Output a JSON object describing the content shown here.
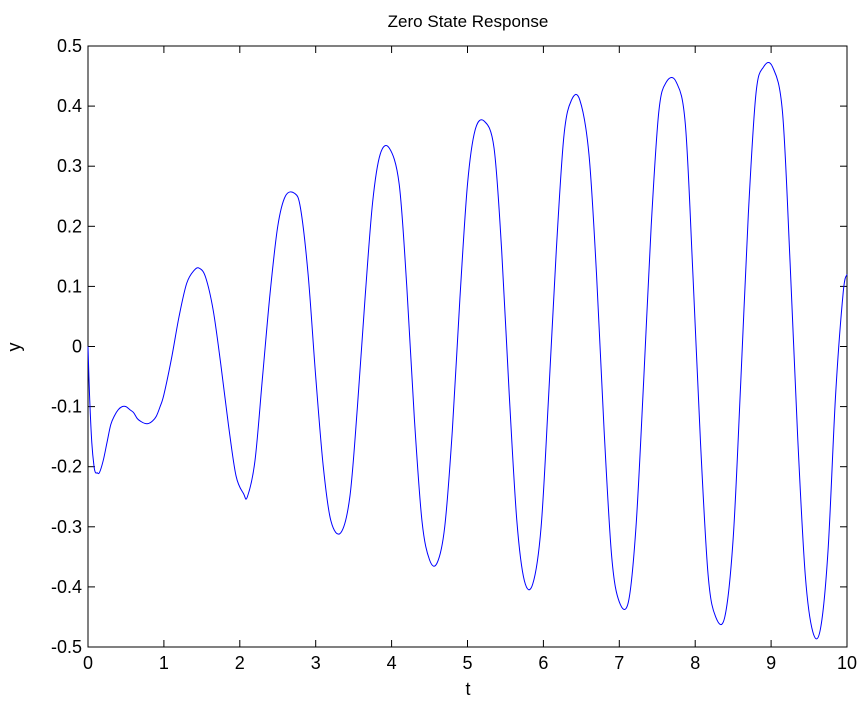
{
  "chart_data": {
    "type": "line",
    "title": "Zero State Response",
    "xlabel": "t",
    "ylabel": "y",
    "xlim": [
      0,
      10
    ],
    "ylim": [
      -0.5,
      0.5
    ],
    "grid": false,
    "legend": "none",
    "colors": {
      "line": "#0000ff",
      "axes": "#000000",
      "background": "#ffffff"
    },
    "xticks": [
      0,
      1,
      2,
      3,
      4,
      5,
      6,
      7,
      8,
      9,
      10
    ],
    "xtick_labels": [
      "0",
      "1",
      "2",
      "3",
      "4",
      "5",
      "6",
      "7",
      "8",
      "9",
      "10"
    ],
    "yticks": [
      0.5,
      0.4,
      0.3,
      0.2,
      0.1,
      0,
      -0.1,
      -0.2,
      -0.3,
      -0.4,
      -0.5
    ],
    "ytick_labels": [
      "0.5",
      "0.4",
      "0.3",
      "0.2",
      "0.1",
      "0",
      "-0.1",
      "-0.2",
      "-0.3",
      "-0.4",
      "-0.5"
    ],
    "series": [
      {
        "x": [
          0,
          0.02,
          0.05,
          0.08,
          0.1,
          0.12,
          0.15,
          0.2,
          0.25,
          0.3,
          0.35,
          0.4,
          0.45,
          0.5,
          0.55,
          0.6,
          0.65,
          0.7,
          0.75,
          0.8,
          0.85,
          0.9,
          0.95,
          1.0,
          1.1,
          1.2,
          1.3,
          1.4,
          1.47,
          1.55,
          1.65,
          1.75,
          1.85,
          1.95,
          2.05,
          2.1,
          2.2,
          2.3,
          2.4,
          2.5,
          2.6,
          2.72,
          2.8,
          2.9,
          3.0,
          3.1,
          3.2,
          3.33,
          3.45,
          3.55,
          3.65,
          3.75,
          3.85,
          3.97,
          4.1,
          4.2,
          4.3,
          4.4,
          4.5,
          4.6,
          4.7,
          4.8,
          4.9,
          5.0,
          5.1,
          5.22,
          5.35,
          5.45,
          5.55,
          5.65,
          5.75,
          5.86,
          5.97,
          6.07,
          6.17,
          6.27,
          6.37,
          6.48,
          6.6,
          6.7,
          6.8,
          6.9,
          7.0,
          7.12,
          7.22,
          7.32,
          7.42,
          7.52,
          7.62,
          7.75,
          7.87,
          7.97,
          8.07,
          8.17,
          8.27,
          8.39,
          8.5,
          8.6,
          8.7,
          8.8,
          8.9,
          9.02,
          9.15,
          9.25,
          9.35,
          9.45,
          9.55,
          9.65,
          9.75,
          9.85,
          9.95,
          10.0
        ],
        "y": [
          0.0,
          -0.08,
          -0.16,
          -0.2,
          -0.21,
          -0.21,
          -0.21,
          -0.19,
          -0.16,
          -0.13,
          -0.115,
          -0.105,
          -0.1,
          -0.1,
          -0.105,
          -0.11,
          -0.12,
          -0.125,
          -0.128,
          -0.128,
          -0.124,
          -0.116,
          -0.1,
          -0.08,
          -0.02,
          0.05,
          0.105,
          0.127,
          0.13,
          0.115,
          0.06,
          -0.03,
          -0.13,
          -0.215,
          -0.245,
          -0.25,
          -0.19,
          -0.05,
          0.09,
          0.2,
          0.25,
          0.255,
          0.23,
          0.12,
          -0.05,
          -0.2,
          -0.29,
          -0.31,
          -0.25,
          -0.1,
          0.08,
          0.24,
          0.32,
          0.33,
          0.27,
          0.1,
          -0.12,
          -0.29,
          -0.355,
          -0.36,
          -0.3,
          -0.14,
          0.08,
          0.27,
          0.36,
          0.375,
          0.33,
          0.16,
          -0.08,
          -0.29,
          -0.39,
          -0.395,
          -0.3,
          -0.08,
          0.16,
          0.35,
          0.41,
          0.41,
          0.32,
          0.12,
          -0.14,
          -0.35,
          -0.425,
          -0.425,
          -0.3,
          -0.06,
          0.2,
          0.39,
          0.44,
          0.44,
          0.37,
          0.12,
          -0.16,
          -0.38,
          -0.45,
          -0.45,
          -0.32,
          -0.06,
          0.22,
          0.42,
          0.465,
          0.465,
          0.39,
          0.14,
          -0.15,
          -0.38,
          -0.475,
          -0.47,
          -0.34,
          -0.08,
          0.09,
          0.12
        ]
      }
    ]
  }
}
